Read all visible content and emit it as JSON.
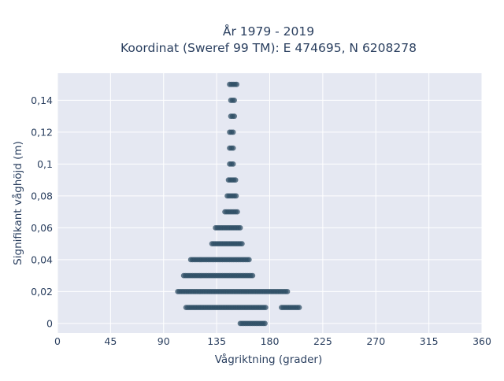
{
  "chart_data": {
    "type": "scatter",
    "title_line1": "År 1979 - 2019",
    "title_line2": "Koordinat (Sweref 99 TM): E 474695, N 6208278",
    "xlabel": "Vågriktning (grader)",
    "ylabel": "Signifikant våghöjd (m)",
    "xlim": [
      0,
      360
    ],
    "ylim": [
      -0.006,
      0.157
    ],
    "x_ticks": [
      0,
      45,
      90,
      135,
      180,
      225,
      270,
      315,
      360
    ],
    "x_tick_labels": [
      "0",
      "45",
      "90",
      "135",
      "180",
      "225",
      "270",
      "315",
      "360"
    ],
    "y_ticks": [
      0,
      0.02,
      0.04,
      0.06,
      0.08,
      0.1,
      0.12,
      0.14
    ],
    "y_tick_labels": [
      "0",
      "0,02",
      "0,04",
      "0,06",
      "0,08",
      "0,1",
      "0,12",
      "0,14"
    ],
    "grid": true,
    "marker_color": "#2f4f65",
    "plot_background": "#e5e8f2",
    "series": [
      {
        "bands": [
          {
            "y": 0.0,
            "x_min": 155,
            "x_max": 177
          },
          {
            "y": 0.01,
            "x_min": 109,
            "x_max": 177
          },
          {
            "y": 0.01,
            "x_min": 190,
            "x_max": 206
          },
          {
            "y": 0.02,
            "x_min": 102,
            "x_max": 195
          },
          {
            "y": 0.03,
            "x_min": 107,
            "x_max": 166
          },
          {
            "y": 0.04,
            "x_min": 113,
            "x_max": 163
          },
          {
            "y": 0.05,
            "x_min": 131,
            "x_max": 157
          },
          {
            "y": 0.06,
            "x_min": 134,
            "x_max": 155
          },
          {
            "y": 0.07,
            "x_min": 142,
            "x_max": 153
          },
          {
            "y": 0.08,
            "x_min": 144,
            "x_max": 152
          },
          {
            "y": 0.09,
            "x_min": 145,
            "x_max": 151
          },
          {
            "y": 0.1,
            "x_min": 146,
            "x_max": 150
          },
          {
            "y": 0.11,
            "x_min": 146,
            "x_max": 150
          },
          {
            "y": 0.12,
            "x_min": 146,
            "x_max": 150
          },
          {
            "y": 0.13,
            "x_min": 147,
            "x_max": 150
          },
          {
            "y": 0.14,
            "x_min": 147,
            "x_max": 150
          },
          {
            "y": 0.15,
            "x_min": 146,
            "x_max": 152
          }
        ]
      }
    ]
  }
}
